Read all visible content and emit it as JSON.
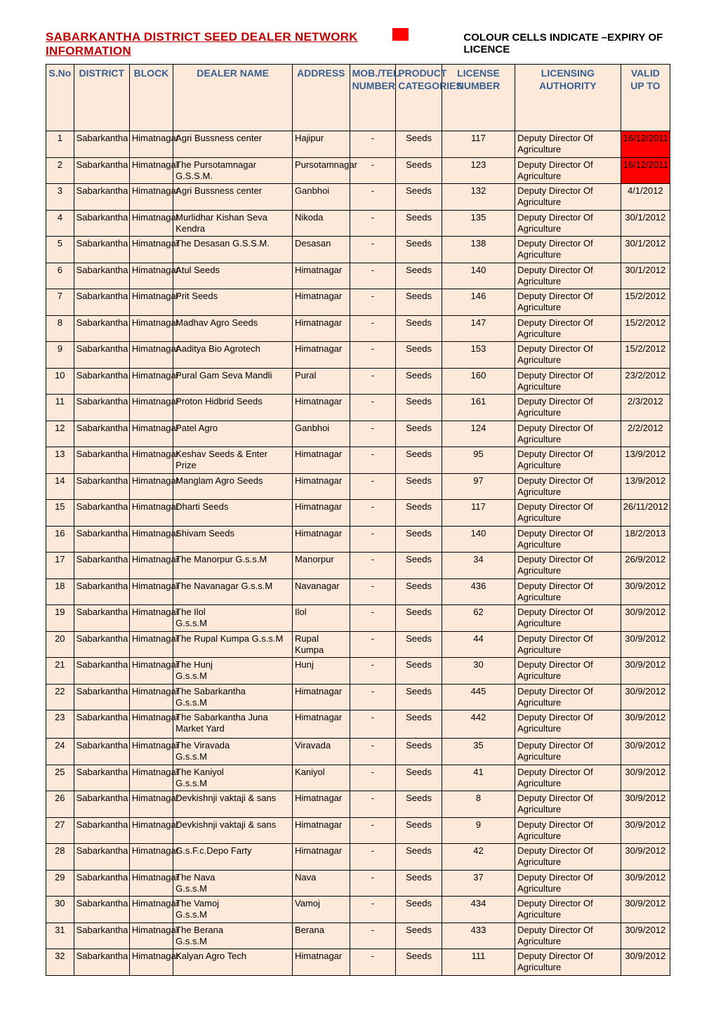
{
  "header": {
    "title": "SABARKANTHA DISTRICT SEED DEALER NETWORK INFORMATION",
    "legend": "COLOUR CELLS INDICATE –EXPIRY OF LICENCE",
    "swatch_color": "#ff0000"
  },
  "table": {
    "header_bg": "#fde9d9",
    "header_color": "#376091",
    "row_bg": "#fde9d9",
    "expired_bg": "#ff0000",
    "columns": [
      "S.No",
      "DISTRICT",
      "BLOCK",
      "DEALER NAME",
      "ADDRESS",
      "MOB./TEL. NUMBER",
      "PRODUCT CATEGORIES",
      "LICENSE NUMBER",
      "LICENSING AUTHORITY",
      "VALID UP TO"
    ],
    "rows": [
      {
        "sno": "1",
        "district": "Sabarkantha",
        "block": "Himatnagar",
        "dealer": "Agri Bussness center",
        "address": "Hajipur",
        "mob": "-",
        "cat": "Seeds",
        "lic": "117",
        "auth": "Deputy Director Of Agriculture",
        "valid": "16/12/2011",
        "expired": true
      },
      {
        "sno": "2",
        "district": "Sabarkantha",
        "block": "Himatnagar",
        "dealer": "The Pursotamnagar G.S.S.M.",
        "address": "Pursotamnagar",
        "mob": "-",
        "cat": "Seeds",
        "lic": "123",
        "auth": "Deputy Director Of Agriculture",
        "valid": "16/12/2011",
        "expired": true
      },
      {
        "sno": "3",
        "district": "Sabarkantha",
        "block": "Himatnagar",
        "dealer": "Agri Bussness center",
        "address": "Ganbhoi",
        "mob": "-",
        "cat": "Seeds",
        "lic": "132",
        "auth": "Deputy Director Of Agriculture",
        "valid": "4/1/2012",
        "expired": false
      },
      {
        "sno": "4",
        "district": "Sabarkantha",
        "block": "Himatnagar",
        "dealer": "Murlidhar Kishan Seva Kendra",
        "address": "Nikoda",
        "mob": "-",
        "cat": "Seeds",
        "lic": "135",
        "auth": "Deputy Director Of Agriculture",
        "valid": "30/1/2012",
        "expired": false
      },
      {
        "sno": "5",
        "district": "Sabarkantha",
        "block": "Himatnagar",
        "dealer": "The Desasan G.S.S.M.",
        "address": "Desasan",
        "mob": "-",
        "cat": "Seeds",
        "lic": "138",
        "auth": "Deputy Director Of Agriculture",
        "valid": "30/1/2012",
        "expired": false
      },
      {
        "sno": "6",
        "district": "Sabarkantha",
        "block": "Himatnagar",
        "dealer": "Atul Seeds",
        "address": "Himatnagar",
        "mob": "-",
        "cat": "Seeds",
        "lic": "140",
        "auth": "Deputy Director Of Agriculture",
        "valid": "30/1/2012",
        "expired": false
      },
      {
        "sno": "7",
        "district": "Sabarkantha",
        "block": "Himatnagar",
        "dealer": "Prit Seeds",
        "address": "Himatnagar",
        "mob": "-",
        "cat": "Seeds",
        "lic": "146",
        "auth": "Deputy Director Of Agriculture",
        "valid": "15/2/2012",
        "expired": false
      },
      {
        "sno": "8",
        "district": "Sabarkantha",
        "block": "Himatnagar",
        "dealer": "Madhav Agro Seeds",
        "address": "Himatnagar",
        "mob": "-",
        "cat": "Seeds",
        "lic": "147",
        "auth": "Deputy Director Of Agriculture",
        "valid": "15/2/2012",
        "expired": false
      },
      {
        "sno": "9",
        "district": "Sabarkantha",
        "block": "Himatnagar",
        "dealer": "Aaditya Bio Agrotech",
        "address": "Himatnagar",
        "mob": "-",
        "cat": "Seeds",
        "lic": "153",
        "auth": "Deputy Director Of Agriculture",
        "valid": "15/2/2012",
        "expired": false
      },
      {
        "sno": "10",
        "district": "Sabarkantha",
        "block": "Himatnagar",
        "dealer": "Pural Gam Seva Mandli",
        "address": "Pural",
        "mob": "-",
        "cat": "Seeds",
        "lic": "160",
        "auth": "Deputy Director Of Agriculture",
        "valid": "23/2/2012",
        "expired": false
      },
      {
        "sno": "11",
        "district": "Sabarkantha",
        "block": "Himatnagar",
        "dealer": "Proton Hidbrid Seeds",
        "address": "Himatnagar",
        "mob": "-",
        "cat": "Seeds",
        "lic": "161",
        "auth": "Deputy Director Of Agriculture",
        "valid": "2/3/2012",
        "expired": false
      },
      {
        "sno": "12",
        "district": "Sabarkantha",
        "block": "Himatnagar",
        "dealer": "Patel Agro",
        "address": "Ganbhoi",
        "mob": "-",
        "cat": "Seeds",
        "lic": "124",
        "auth": "Deputy Director Of Agriculture",
        "valid": "2/2/2012",
        "expired": false
      },
      {
        "sno": "13",
        "district": "Sabarkantha",
        "block": "Himatnagar",
        "dealer": "Keshav Seeds & Enter Prize",
        "address": "Himatnagar",
        "mob": "-",
        "cat": "Seeds",
        "lic": "95",
        "auth": "Deputy Director Of Agriculture",
        "valid": "13/9/2012",
        "expired": false
      },
      {
        "sno": "14",
        "district": "Sabarkantha",
        "block": "Himatnagar",
        "dealer": "Manglam Agro Seeds",
        "address": "Himatnagar",
        "mob": "-",
        "cat": "Seeds",
        "lic": "97",
        "auth": "Deputy Director Of Agriculture",
        "valid": "13/9/2012",
        "expired": false
      },
      {
        "sno": "15",
        "district": "Sabarkantha",
        "block": "Himatnagar",
        "dealer": "Dharti Seeds",
        "address": "Himatnagar",
        "mob": "-",
        "cat": "Seeds",
        "lic": "117",
        "auth": "Deputy Director Of Agriculture",
        "valid": "26/11/2012",
        "expired": false
      },
      {
        "sno": "16",
        "district": "Sabarkantha",
        "block": "Himatnagar",
        "dealer": "Shivam Seeds",
        "address": "Himatnagar",
        "mob": "-",
        "cat": "Seeds",
        "lic": "140",
        "auth": "Deputy Director Of Agriculture",
        "valid": "18/2/2013",
        "expired": false
      },
      {
        "sno": "17",
        "district": "Sabarkantha",
        "block": "Himatnagar",
        "dealer": "The Manorpur G.s.s.M",
        "address": "Manorpur",
        "mob": "-",
        "cat": "Seeds",
        "lic": "34",
        "auth": "Deputy Director Of Agriculture",
        "valid": "26/9/2012",
        "expired": false
      },
      {
        "sno": "18",
        "district": "Sabarkantha",
        "block": "Himatnagar",
        "dealer": "The Navanagar G.s.s.M",
        "address": "Navanagar",
        "mob": "-",
        "cat": "Seeds",
        "lic": "436",
        "auth": "Deputy Director Of Agriculture",
        "valid": "30/9/2012",
        "expired": false
      },
      {
        "sno": "19",
        "district": "Sabarkantha",
        "block": "Himatnagar",
        "dealer": "The Ilol\nG.s.s.M",
        "address": "Ilol",
        "mob": "-",
        "cat": "Seeds",
        "lic": "62",
        "auth": "Deputy Director Of Agriculture",
        "valid": "30/9/2012",
        "expired": false
      },
      {
        "sno": "20",
        "district": "Sabarkantha",
        "block": "Himatnagar",
        "dealer": "The Rupal Kumpa G.s.s.M",
        "address": "Rupal Kumpa",
        "mob": "-",
        "cat": "Seeds",
        "lic": "44",
        "auth": "Deputy Director Of Agriculture",
        "valid": "30/9/2012",
        "expired": false
      },
      {
        "sno": "21",
        "district": "Sabarkantha",
        "block": "Himatnagar",
        "dealer": "The Hunj\nG.s.s.M",
        "address": "Hunj",
        "mob": "-",
        "cat": "Seeds",
        "lic": "30",
        "auth": "Deputy Director Of Agriculture",
        "valid": "30/9/2012",
        "expired": false
      },
      {
        "sno": "22",
        "district": "Sabarkantha",
        "block": "Himatnagar",
        "dealer": "The Sabarkantha\nG.s.s.M",
        "address": "Himatnagar",
        "mob": "-",
        "cat": "Seeds",
        "lic": "445",
        "auth": "Deputy Director Of Agriculture",
        "valid": "30/9/2012",
        "expired": false
      },
      {
        "sno": "23",
        "district": "Sabarkantha",
        "block": "Himatnagar",
        "dealer": "The Sabarkantha Juna Market Yard",
        "address": "Himatnagar",
        "mob": "-",
        "cat": "Seeds",
        "lic": "442",
        "auth": "Deputy Director Of Agriculture",
        "valid": "30/9/2012",
        "expired": false,
        "tall": true
      },
      {
        "sno": "24",
        "district": "Sabarkantha",
        "block": "Himatnagar",
        "dealer": "The Viravada\nG.s.s.M",
        "address": "Viravada",
        "mob": "-",
        "cat": "Seeds",
        "lic": "35",
        "auth": "Deputy Director Of Agriculture",
        "valid": "30/9/2012",
        "expired": false
      },
      {
        "sno": "25",
        "district": "Sabarkantha",
        "block": "Himatnagar",
        "dealer": "The Kaniyol\nG.s.s.M",
        "address": "Kaniyol",
        "mob": "-",
        "cat": "Seeds",
        "lic": "41",
        "auth": "Deputy Director Of Agriculture",
        "valid": "30/9/2012",
        "expired": false
      },
      {
        "sno": "26",
        "district": "Sabarkantha",
        "block": "Himatnagar",
        "dealer": "Devkishnji vaktaji & sans",
        "address": "Himatnagar",
        "mob": "-",
        "cat": "Seeds",
        "lic": "8",
        "auth": "Deputy Director Of Agriculture",
        "valid": "30/9/2012",
        "expired": false
      },
      {
        "sno": "27",
        "district": "Sabarkantha",
        "block": "Himatnagar",
        "dealer": "Devkishnji vaktaji & sans",
        "address": "Himatnagar",
        "mob": "-",
        "cat": "Seeds",
        "lic": "9",
        "auth": "Deputy Director Of Agriculture",
        "valid": "30/9/2012",
        "expired": false
      },
      {
        "sno": "28",
        "district": "Sabarkantha",
        "block": "Himatnagar",
        "dealer": "G.s.F.c.Depo Farty",
        "address": "Himatnagar",
        "mob": "-",
        "cat": "Seeds",
        "lic": "42",
        "auth": "Deputy Director Of Agriculture",
        "valid": "30/9/2012",
        "expired": false
      },
      {
        "sno": "29",
        "district": "Sabarkantha",
        "block": "Himatnagar",
        "dealer": "The Nava\nG.s.s.M",
        "address": "Nava",
        "mob": "-",
        "cat": "Seeds",
        "lic": "37",
        "auth": "Deputy Director Of Agriculture",
        "valid": "30/9/2012",
        "expired": false
      },
      {
        "sno": "30",
        "district": "Sabarkantha",
        "block": "Himatnagar",
        "dealer": "The Vamoj\nG.s.s.M",
        "address": "Vamoj",
        "mob": "-",
        "cat": "Seeds",
        "lic": "434",
        "auth": "Deputy Director Of Agriculture",
        "valid": "30/9/2012",
        "expired": false
      },
      {
        "sno": "31",
        "district": "Sabarkantha",
        "block": "Himatnagar",
        "dealer": "The Berana\nG.s.s.M",
        "address": "Berana",
        "mob": "-",
        "cat": "Seeds",
        "lic": "433",
        "auth": "Deputy Director Of Agriculture",
        "valid": "30/9/2012",
        "expired": false
      },
      {
        "sno": "32",
        "district": "Sabarkantha",
        "block": "Himatnagar",
        "dealer": "Kalyan Agro Tech",
        "address": "Himatnagar",
        "mob": "-",
        "cat": "Seeds",
        "lic": "111",
        "auth": "Deputy Director Of Agriculture",
        "valid": "30/9/2012",
        "expired": false
      }
    ]
  }
}
